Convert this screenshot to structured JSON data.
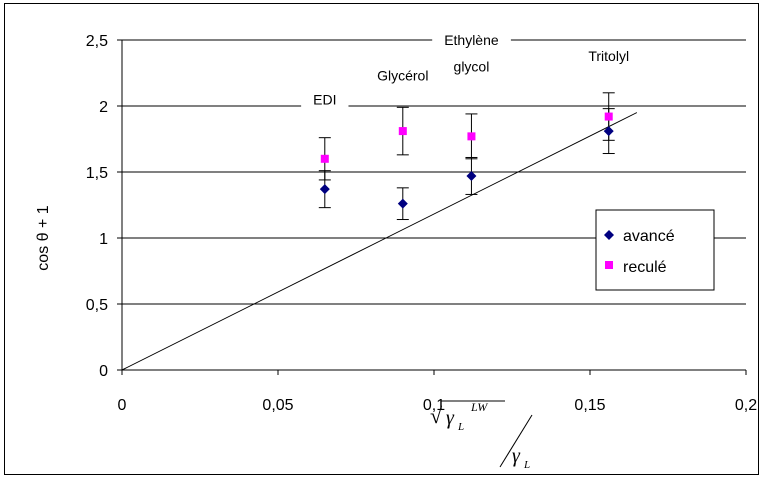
{
  "chart_data": {
    "type": "scatter",
    "xlim": [
      0,
      0.2
    ],
    "ylim": [
      0,
      2.5
    ],
    "x_ticks": [
      "0",
      "0,05",
      "0,1",
      "0,15",
      "0,2"
    ],
    "y_ticks": [
      "0",
      "0,5",
      "1",
      "1,5",
      "2",
      "2,5"
    ],
    "grid": "horizontal",
    "legend_placement": "right",
    "ylabel": "cos θ + 1",
    "xlabel": {
      "numerator": "√γL^LW",
      "denominator": "γL"
    },
    "series": [
      {
        "name": "avancé",
        "marker": "diamond",
        "color": "#000080",
        "points": [
          {
            "x": 0.065,
            "y": 1.37,
            "err": 0.14
          },
          {
            "x": 0.09,
            "y": 1.26,
            "err": 0.12
          },
          {
            "x": 0.112,
            "y": 1.47,
            "err": 0.14
          },
          {
            "x": 0.156,
            "y": 1.81,
            "err": 0.17
          }
        ]
      },
      {
        "name": "reculé",
        "marker": "square",
        "color": "#ff00ff",
        "points": [
          {
            "x": 0.065,
            "y": 1.6,
            "err": 0.16
          },
          {
            "x": 0.09,
            "y": 1.81,
            "err": 0.18
          },
          {
            "x": 0.112,
            "y": 1.77,
            "err": 0.17
          },
          {
            "x": 0.156,
            "y": 1.92,
            "err": 0.18
          }
        ]
      }
    ],
    "reference_line": {
      "x": [
        0,
        0.165
      ],
      "y": [
        0,
        1.95
      ]
    },
    "annotations": [
      {
        "text": "EDI",
        "x": 0.065,
        "y": 2.05
      },
      {
        "text": "Glycérol",
        "x": 0.09,
        "y": 2.23
      },
      {
        "text": "Ethylène",
        "x": 0.112,
        "y": 2.5
      },
      {
        "text": "glycol",
        "x": 0.112,
        "y": 2.3
      },
      {
        "text": "Tritolyl",
        "x": 0.156,
        "y": 2.38
      }
    ]
  }
}
